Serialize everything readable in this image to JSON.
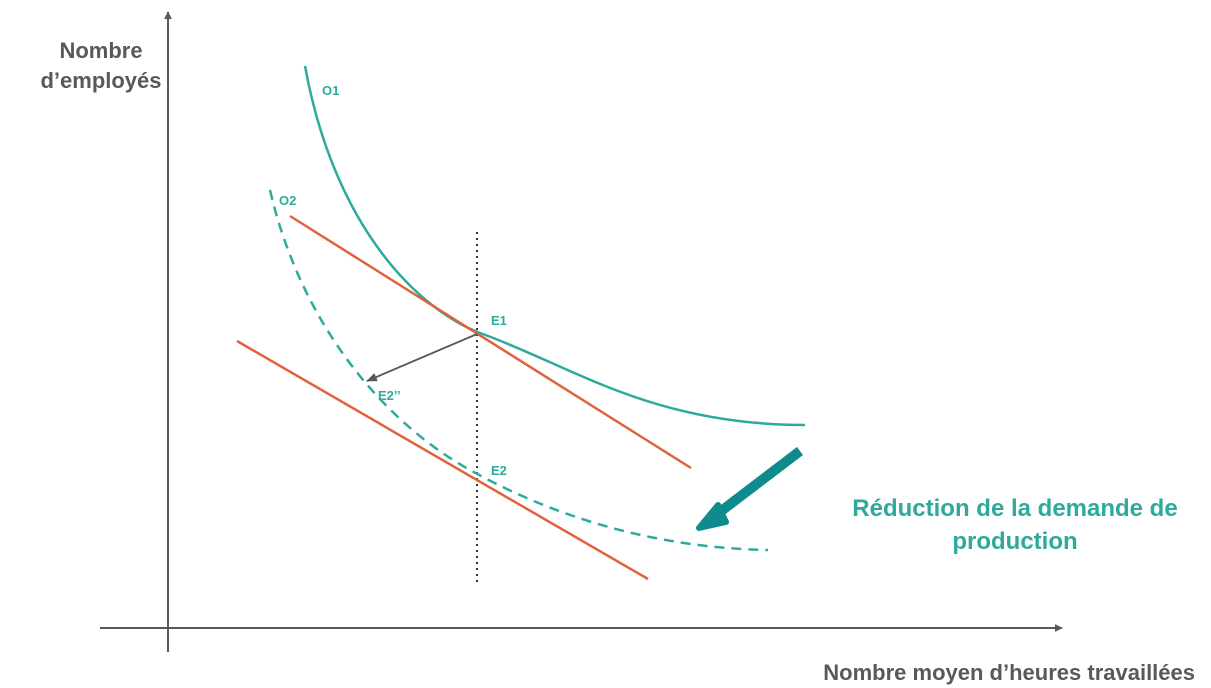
{
  "axes": {
    "y_label": "Nombre d’employés",
    "x_label": "Nombre moyen d’heures travaillées"
  },
  "curves": {
    "o1_label": "O1",
    "o2_label": "O2"
  },
  "points": {
    "e1_label": "E1",
    "e2_label": "E2",
    "e2pp_label": "E2’’"
  },
  "annotation": {
    "text": "Réduction de la demande de production"
  },
  "colors": {
    "teal": "#2eaa9c",
    "orange": "#e0623a",
    "axis": "#595959",
    "shift_arrow": "#0f8b8d",
    "move_arrow": "#595959"
  }
}
